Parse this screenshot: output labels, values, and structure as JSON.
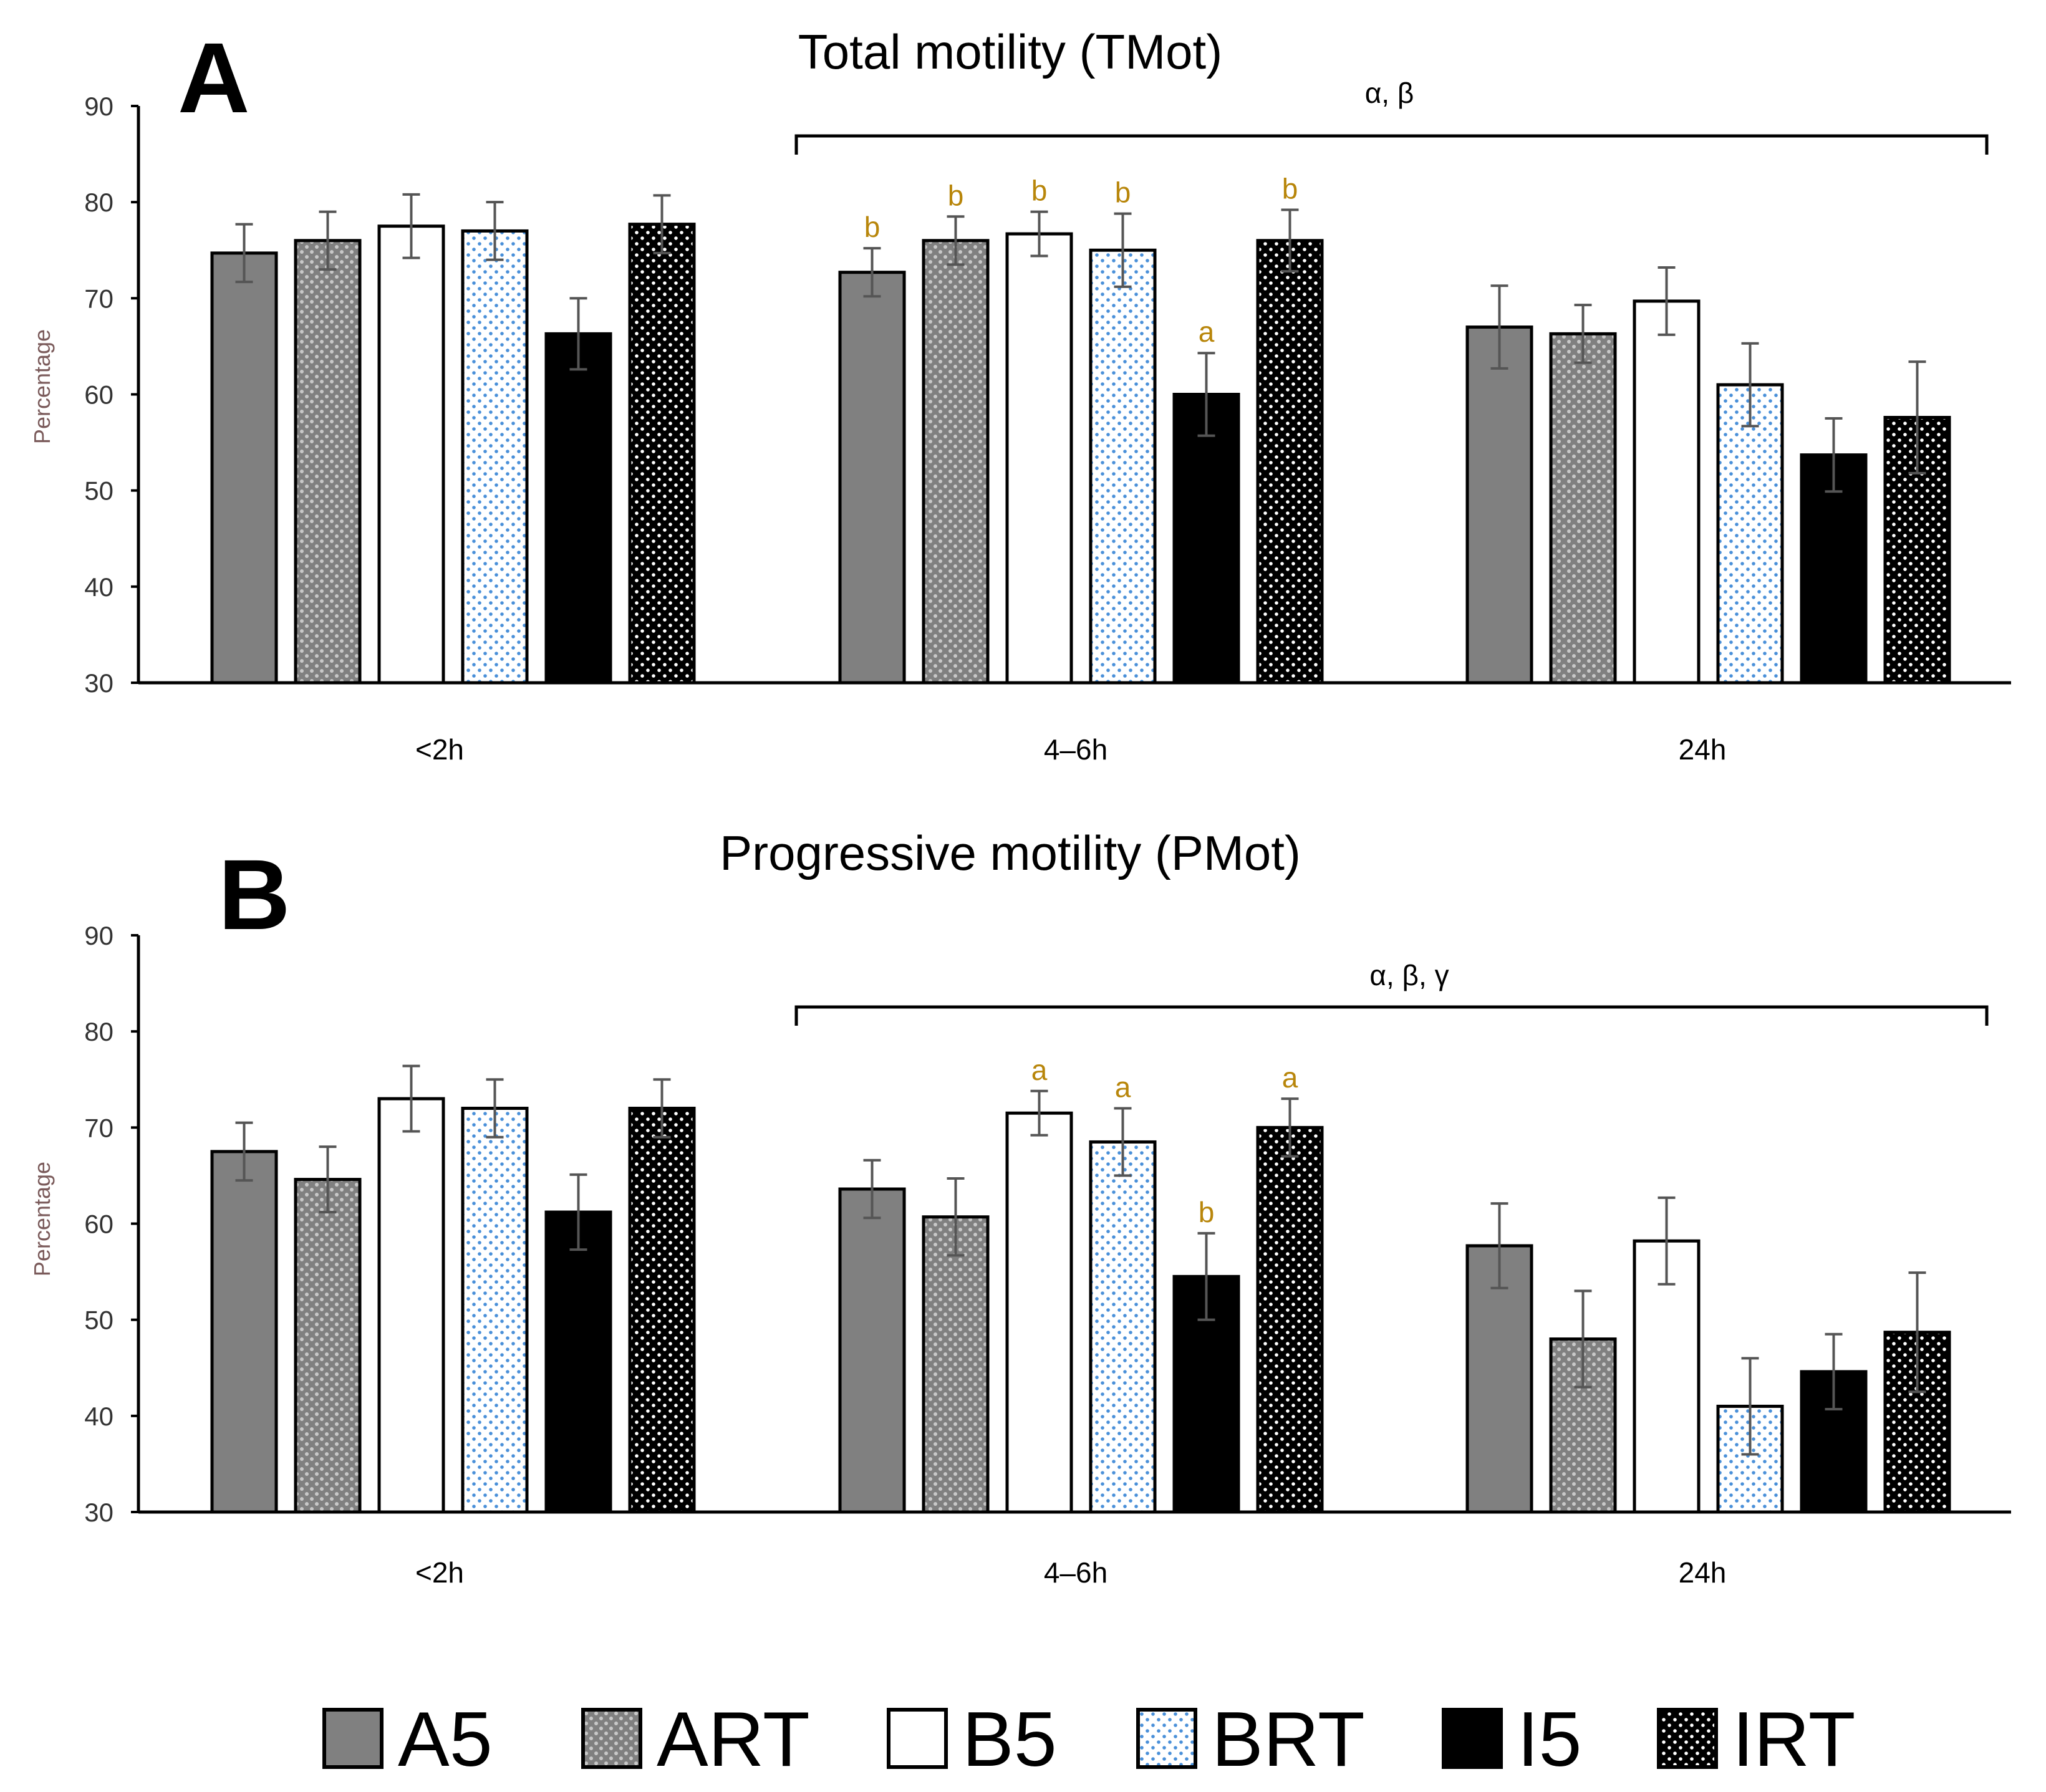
{
  "chart_data": [
    {
      "type": "bar",
      "panel_label": "A",
      "title": "Total motility (TMot)",
      "ylabel": "Percentage",
      "xlabel": "",
      "ylim": [
        30,
        90
      ],
      "yticks": [
        30,
        40,
        50,
        60,
        70,
        80,
        90
      ],
      "categories": [
        "<2h",
        "4–6h",
        "24h"
      ],
      "series": [
        {
          "name": "A5",
          "values": [
            74.7,
            72.7,
            67.0
          ],
          "errors": [
            3.0,
            2.5,
            4.3
          ],
          "letters": [
            "",
            "b",
            ""
          ]
        },
        {
          "name": "ART",
          "values": [
            76.0,
            76.0,
            66.3
          ],
          "errors": [
            3.0,
            2.5,
            3.0
          ],
          "letters": [
            "",
            "b",
            ""
          ]
        },
        {
          "name": "B5",
          "values": [
            77.5,
            76.7,
            69.7
          ],
          "errors": [
            3.3,
            2.3,
            3.5
          ],
          "letters": [
            "",
            "b",
            ""
          ]
        },
        {
          "name": "BRT",
          "values": [
            77.0,
            75.0,
            61.0
          ],
          "errors": [
            3.0,
            3.8,
            4.3
          ],
          "letters": [
            "",
            "b",
            ""
          ]
        },
        {
          "name": "I5",
          "values": [
            66.3,
            60.0,
            53.7
          ],
          "errors": [
            3.7,
            4.3,
            3.8
          ],
          "letters": [
            "",
            "a",
            ""
          ]
        },
        {
          "name": "IRT",
          "values": [
            77.7,
            76.0,
            57.6
          ],
          "errors": [
            3.0,
            3.2,
            5.8
          ],
          "letters": [
            "",
            "b",
            ""
          ]
        }
      ],
      "annotation": {
        "text": "α, β",
        "spans": [
          "4–6h",
          "24h"
        ]
      }
    },
    {
      "type": "bar",
      "panel_label": "B",
      "title": "Progressive motility (PMot)",
      "ylabel": "Percentage",
      "xlabel": "",
      "ylim": [
        30,
        90
      ],
      "yticks": [
        30,
        40,
        50,
        60,
        70,
        80,
        90
      ],
      "categories": [
        "<2h",
        "4–6h",
        "24h"
      ],
      "series": [
        {
          "name": "A5",
          "values": [
            67.5,
            63.6,
            57.7
          ],
          "errors": [
            3.0,
            3.0,
            4.4
          ],
          "letters": [
            "",
            "",
            ""
          ]
        },
        {
          "name": "ART",
          "values": [
            64.6,
            60.7,
            48.0
          ],
          "errors": [
            3.4,
            4.0,
            5.0
          ],
          "letters": [
            "",
            "",
            ""
          ]
        },
        {
          "name": "B5",
          "values": [
            73.0,
            71.5,
            58.2
          ],
          "errors": [
            3.4,
            2.3,
            4.5
          ],
          "letters": [
            "",
            "a",
            ""
          ]
        },
        {
          "name": "BRT",
          "values": [
            72.0,
            68.5,
            41.0
          ],
          "errors": [
            3.0,
            3.5,
            5.0
          ],
          "letters": [
            "",
            "a",
            ""
          ]
        },
        {
          "name": "I5",
          "values": [
            61.2,
            54.5,
            44.6
          ],
          "errors": [
            3.9,
            4.5,
            3.9
          ],
          "letters": [
            "",
            "b",
            ""
          ]
        },
        {
          "name": "IRT",
          "values": [
            72.0,
            70.0,
            48.7
          ],
          "errors": [
            3.0,
            3.0,
            6.2
          ],
          "letters": [
            "",
            "a",
            ""
          ]
        }
      ],
      "annotation": {
        "text": "α, β, γ",
        "spans": [
          "4–6h",
          "24h"
        ]
      }
    }
  ],
  "legend": [
    {
      "label": "A5",
      "pattern": "gray"
    },
    {
      "label": "ART",
      "pattern": "gray-dots"
    },
    {
      "label": "B5",
      "pattern": "white"
    },
    {
      "label": "BRT",
      "pattern": "white-blue-dots"
    },
    {
      "label": "I5",
      "pattern": "black"
    },
    {
      "label": "IRT",
      "pattern": "black-white-dots"
    }
  ],
  "colors": {
    "gray": "#808080",
    "black": "#000000",
    "white": "#ffffff",
    "blue_dot": "#4a90d9",
    "letter": "#b8860b",
    "ylabel": "#7a5a5a"
  }
}
